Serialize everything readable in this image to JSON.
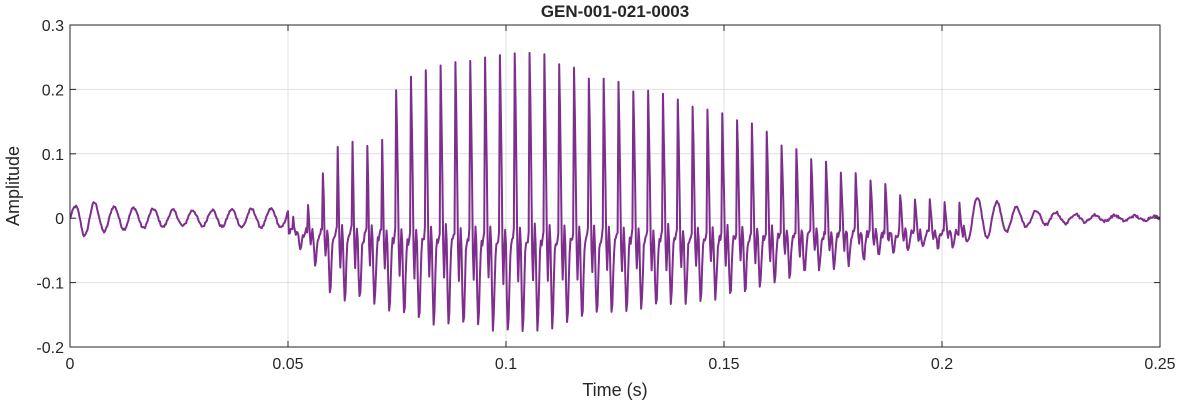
{
  "chart_data": {
    "type": "line",
    "title": "GEN-001-021-0003",
    "xlabel": "Time (s)",
    "ylabel": "Amplitude",
    "xlim": [
      0,
      0.25
    ],
    "ylim": [
      -0.2,
      0.3
    ],
    "x_ticks": [
      0,
      0.05,
      0.1,
      0.15,
      0.2,
      0.25
    ],
    "x_tick_labels": [
      "0",
      "0.05",
      "0.1",
      "0.15",
      "0.2",
      "0.25"
    ],
    "y_ticks": [
      -0.2,
      -0.1,
      0,
      0.1,
      0.2,
      0.3
    ],
    "y_tick_labels": [
      "-0.2",
      "-0.1",
      "0",
      "0.1",
      "0.2",
      "0.3"
    ],
    "grid": true,
    "series_color": "#7E2F8E",
    "waveform": {
      "sample_step_s": 0.0002,
      "envelope_knots": [
        [
          0,
          0.012
        ],
        [
          0.003,
          0.028
        ],
        [
          0.01,
          0.018
        ],
        [
          0.025,
          0.012
        ],
        [
          0.04,
          0.014
        ],
        [
          0.05,
          0.015
        ],
        [
          0.055,
          0.07
        ],
        [
          0.06,
          0.18
        ],
        [
          0.07,
          0.2
        ],
        [
          0.08,
          0.25
        ],
        [
          0.095,
          0.27
        ],
        [
          0.105,
          0.28
        ],
        [
          0.12,
          0.24
        ],
        [
          0.14,
          0.2
        ],
        [
          0.155,
          0.17
        ],
        [
          0.165,
          0.13
        ],
        [
          0.18,
          0.085
        ],
        [
          0.19,
          0.06
        ],
        [
          0.2,
          0.045
        ],
        [
          0.21,
          0.03
        ],
        [
          0.22,
          0.012
        ],
        [
          0.235,
          0.005
        ],
        [
          0.25,
          0.003
        ]
      ],
      "pitch_period_s": 0.0034
    }
  }
}
